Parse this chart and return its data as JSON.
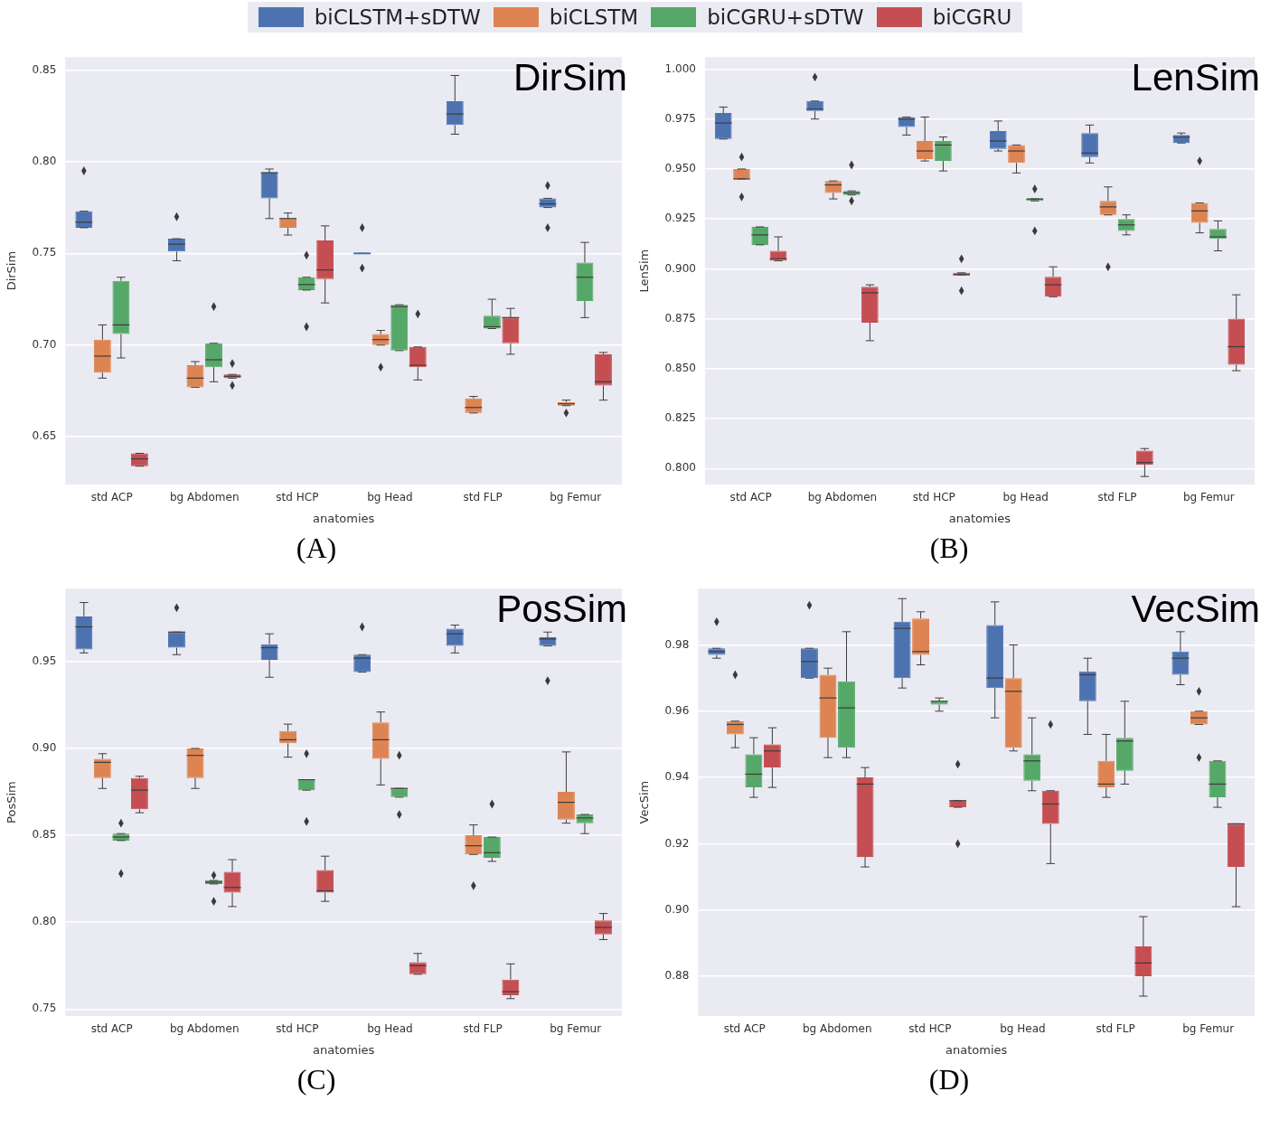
{
  "chart_data": [
    {
      "type": "box",
      "title": "DirSim",
      "xlabel": "anatomies",
      "ylabel": "DirSim",
      "annotations": [
        "(A)"
      ],
      "categories": [
        "std ACP",
        "bg Abdomen",
        "std HCP",
        "bg Head",
        "std FLP",
        "bg Femur"
      ],
      "ylim": [
        0.624,
        0.857
      ],
      "yticks": [
        0.65,
        {
          "value": 0.7,
          "label": "0.70"
        },
        0.75,
        {
          "value": 0.8,
          "label": "0.80"
        },
        0.85
      ],
      "grid": "y",
      "legend": "top",
      "marker": "diamond",
      "series": [
        {
          "name": "biCLSTM+sDTW",
          "color": "#4c72b0",
          "boxes": [
            {
              "low": 0.764,
              "q1": 0.764,
              "median": 0.767,
              "q3": 0.773,
              "high": 0.773,
              "outliers": [
                0.795
              ]
            },
            {
              "low": 0.746,
              "q1": 0.751,
              "median": 0.755,
              "q3": 0.758,
              "high": 0.758,
              "outliers": [
                0.77
              ]
            },
            {
              "low": 0.769,
              "q1": 0.78,
              "median": 0.794,
              "q3": 0.794,
              "high": 0.796
            },
            {
              "low": 0.75,
              "q1": 0.75,
              "median": 0.75,
              "q3": 0.75,
              "high": 0.75,
              "outliers": [
                0.764,
                0.742
              ]
            },
            {
              "low": 0.815,
              "q1": 0.82,
              "median": 0.826,
              "q3": 0.833,
              "high": 0.847
            },
            {
              "low": 0.775,
              "q1": 0.775,
              "median": 0.777,
              "q3": 0.78,
              "high": 0.78,
              "outliers": [
                0.787,
                0.764
              ]
            }
          ]
        },
        {
          "name": "biCLSTM",
          "color": "#dd8452",
          "boxes": [
            {
              "low": 0.682,
              "q1": 0.685,
              "median": 0.694,
              "q3": 0.703,
              "high": 0.711
            },
            {
              "low": 0.677,
              "q1": 0.677,
              "median": 0.682,
              "q3": 0.689,
              "high": 0.691
            },
            {
              "low": 0.76,
              "q1": 0.764,
              "median": 0.769,
              "q3": 0.769,
              "high": 0.772
            },
            {
              "low": 0.7,
              "q1": 0.7,
              "median": 0.703,
              "q3": 0.706,
              "high": 0.708,
              "outliers": [
                0.688
              ]
            },
            {
              "low": 0.663,
              "q1": 0.663,
              "median": 0.666,
              "q3": 0.671,
              "high": 0.672
            },
            {
              "low": 0.667,
              "q1": 0.667,
              "median": 0.668,
              "q3": 0.669,
              "high": 0.67,
              "outliers": [
                0.663
              ]
            }
          ]
        },
        {
          "name": "biCGRU+sDTW",
          "color": "#55a868",
          "boxes": [
            {
              "low": 0.693,
              "q1": 0.706,
              "median": 0.711,
              "q3": 0.735,
              "high": 0.737
            },
            {
              "low": 0.68,
              "q1": 0.688,
              "median": 0.692,
              "q3": 0.701,
              "high": 0.701,
              "outliers": [
                0.721
              ]
            },
            {
              "low": 0.73,
              "q1": 0.73,
              "median": 0.733,
              "q3": 0.737,
              "high": 0.737,
              "outliers": [
                0.749,
                0.71
              ]
            },
            {
              "low": 0.697,
              "q1": 0.697,
              "median": 0.721,
              "q3": 0.722,
              "high": 0.722
            },
            {
              "low": 0.709,
              "q1": 0.709,
              "median": 0.71,
              "q3": 0.716,
              "high": 0.725
            },
            {
              "low": 0.715,
              "q1": 0.724,
              "median": 0.737,
              "q3": 0.745,
              "high": 0.756
            }
          ]
        },
        {
          "name": "biCGRU",
          "color": "#c44e52",
          "boxes": [
            {
              "low": 0.634,
              "q1": 0.634,
              "median": 0.638,
              "q3": 0.641,
              "high": 0.641
            },
            {
              "low": 0.682,
              "q1": 0.682,
              "median": 0.683,
              "q3": 0.684,
              "high": 0.684,
              "outliers": [
                0.69,
                0.678
              ]
            },
            {
              "low": 0.723,
              "q1": 0.736,
              "median": 0.741,
              "q3": 0.757,
              "high": 0.765
            },
            {
              "low": 0.681,
              "q1": 0.688,
              "median": 0.689,
              "q3": 0.699,
              "high": 0.699,
              "outliers": [
                0.717
              ]
            },
            {
              "low": 0.695,
              "q1": 0.701,
              "median": 0.715,
              "q3": 0.715,
              "high": 0.72
            },
            {
              "low": 0.67,
              "q1": 0.678,
              "median": 0.68,
              "q3": 0.695,
              "high": 0.696
            }
          ]
        }
      ]
    },
    {
      "type": "box",
      "title": "LenSim",
      "xlabel": "anatomies",
      "ylabel": "LenSim",
      "annotations": [
        "(B)"
      ],
      "categories": [
        "std ACP",
        "bg Abdomen",
        "std HCP",
        "bg Head",
        "std FLP",
        "bg Femur"
      ],
      "ylim": [
        0.792,
        1.006
      ],
      "yticks": [
        {
          "value": 0.8,
          "label": "0.800"
        },
        0.825,
        {
          "value": 0.85,
          "label": "0.850"
        },
        0.875,
        {
          "value": 0.9,
          "label": "0.900"
        },
        0.925,
        {
          "value": 0.95,
          "label": "0.950"
        },
        0.975,
        {
          "value": 1,
          "label": "1.000"
        }
      ],
      "grid": "y",
      "marker": "diamond",
      "series": [
        {
          "color": "#4c72b0",
          "boxes": [
            {
              "low": 0.965,
              "q1": 0.965,
              "median": 0.973,
              "q3": 0.978,
              "high": 0.981
            },
            {
              "low": 0.975,
              "q1": 0.979,
              "median": 0.98,
              "q3": 0.984,
              "high": 0.984,
              "outliers": [
                0.996
              ]
            },
            {
              "low": 0.967,
              "q1": 0.971,
              "median": 0.975,
              "q3": 0.976,
              "high": 0.976
            },
            {
              "low": 0.959,
              "q1": 0.96,
              "median": 0.964,
              "q3": 0.969,
              "high": 0.974
            },
            {
              "low": 0.953,
              "q1": 0.956,
              "median": 0.958,
              "q3": 0.968,
              "high": 0.972
            },
            {
              "low": 0.963,
              "q1": 0.963,
              "median": 0.966,
              "q3": 0.967,
              "high": 0.968
            }
          ]
        },
        {
          "color": "#dd8452",
          "boxes": [
            {
              "low": 0.945,
              "q1": 0.945,
              "median": 0.945,
              "q3": 0.95,
              "high": 0.95,
              "outliers": [
                0.956,
                0.936
              ]
            },
            {
              "low": 0.935,
              "q1": 0.938,
              "median": 0.942,
              "q3": 0.944,
              "high": 0.944
            },
            {
              "low": 0.954,
              "q1": 0.955,
              "median": 0.959,
              "q3": 0.964,
              "high": 0.976
            },
            {
              "low": 0.948,
              "q1": 0.953,
              "median": 0.959,
              "q3": 0.962,
              "high": 0.962
            },
            {
              "low": 0.927,
              "q1": 0.927,
              "median": 0.931,
              "q3": 0.934,
              "high": 0.941,
              "outliers": [
                0.901
              ]
            },
            {
              "low": 0.918,
              "q1": 0.923,
              "median": 0.929,
              "q3": 0.933,
              "high": 0.933,
              "outliers": [
                0.954
              ]
            }
          ]
        },
        {
          "color": "#55a868",
          "boxes": [
            {
              "low": 0.912,
              "q1": 0.912,
              "median": 0.917,
              "q3": 0.921,
              "high": 0.921
            },
            {
              "low": 0.937,
              "q1": 0.937,
              "median": 0.938,
              "q3": 0.939,
              "high": 0.939,
              "outliers": [
                0.952,
                0.934
              ]
            },
            {
              "low": 0.949,
              "q1": 0.954,
              "median": 0.962,
              "q3": 0.964,
              "high": 0.966
            },
            {
              "low": 0.934,
              "q1": 0.934,
              "median": 0.935,
              "q3": 0.935,
              "high": 0.935,
              "outliers": [
                0.94,
                0.919
              ]
            },
            {
              "low": 0.917,
              "q1": 0.919,
              "median": 0.922,
              "q3": 0.925,
              "high": 0.927
            },
            {
              "low": 0.909,
              "q1": 0.915,
              "median": 0.916,
              "q3": 0.92,
              "high": 0.924
            }
          ]
        },
        {
          "color": "#c44e52",
          "boxes": [
            {
              "low": 0.904,
              "q1": 0.904,
              "median": 0.905,
              "q3": 0.909,
              "high": 0.916
            },
            {
              "low": 0.864,
              "q1": 0.873,
              "median": 0.888,
              "q3": 0.891,
              "high": 0.892
            },
            {
              "low": 0.897,
              "q1": 0.897,
              "median": 0.897,
              "q3": 0.898,
              "high": 0.898,
              "outliers": [
                0.905,
                0.889
              ]
            },
            {
              "low": 0.886,
              "q1": 0.886,
              "median": 0.892,
              "q3": 0.896,
              "high": 0.901
            },
            {
              "low": 0.796,
              "q1": 0.802,
              "median": 0.803,
              "q3": 0.809,
              "high": 0.81
            },
            {
              "low": 0.849,
              "q1": 0.852,
              "median": 0.861,
              "q3": 0.875,
              "high": 0.887
            }
          ]
        }
      ]
    },
    {
      "type": "box",
      "title": "PosSim",
      "xlabel": "anatomies",
      "ylabel": "PosSim",
      "annotations": [
        "(C)"
      ],
      "categories": [
        "std ACP",
        "bg Abdomen",
        "std HCP",
        "bg Head",
        "std FLP",
        "bg Femur"
      ],
      "ylim": [
        0.746,
        0.992
      ],
      "yticks": [
        0.75,
        {
          "value": 0.8,
          "label": "0.80"
        },
        0.85,
        {
          "value": 0.9,
          "label": "0.90"
        },
        0.95
      ],
      "grid": "y",
      "marker": "diamond",
      "series": [
        {
          "color": "#4c72b0",
          "boxes": [
            {
              "low": 0.955,
              "q1": 0.957,
              "median": 0.97,
              "q3": 0.976,
              "high": 0.984
            },
            {
              "low": 0.954,
              "q1": 0.958,
              "median": 0.967,
              "q3": 0.967,
              "high": 0.967,
              "outliers": [
                0.981
              ]
            },
            {
              "low": 0.941,
              "q1": 0.951,
              "median": 0.958,
              "q3": 0.96,
              "high": 0.966
            },
            {
              "low": 0.944,
              "q1": 0.944,
              "median": 0.952,
              "q3": 0.954,
              "high": 0.954,
              "outliers": [
                0.97
              ]
            },
            {
              "low": 0.955,
              "q1": 0.959,
              "median": 0.966,
              "q3": 0.969,
              "high": 0.971
            },
            {
              "low": 0.959,
              "q1": 0.959,
              "median": 0.963,
              "q3": 0.964,
              "high": 0.967,
              "outliers": [
                0.939
              ]
            }
          ]
        },
        {
          "color": "#dd8452",
          "boxes": [
            {
              "low": 0.877,
              "q1": 0.883,
              "median": 0.892,
              "q3": 0.894,
              "high": 0.897
            },
            {
              "low": 0.877,
              "q1": 0.883,
              "median": 0.896,
              "q3": 0.9,
              "high": 0.9
            },
            {
              "low": 0.895,
              "q1": 0.903,
              "median": 0.905,
              "q3": 0.91,
              "high": 0.914
            },
            {
              "low": 0.879,
              "q1": 0.894,
              "median": 0.905,
              "q3": 0.915,
              "high": 0.921
            },
            {
              "low": 0.839,
              "q1": 0.839,
              "median": 0.844,
              "q3": 0.85,
              "high": 0.856,
              "outliers": [
                0.821
              ]
            },
            {
              "low": 0.857,
              "q1": 0.859,
              "median": 0.869,
              "q3": 0.875,
              "high": 0.898
            }
          ]
        },
        {
          "color": "#55a868",
          "boxes": [
            {
              "low": 0.847,
              "q1": 0.847,
              "median": 0.849,
              "q3": 0.851,
              "high": 0.851,
              "outliers": [
                0.857,
                0.828
              ]
            },
            {
              "low": 0.822,
              "q1": 0.822,
              "median": 0.823,
              "q3": 0.824,
              "high": 0.824,
              "outliers": [
                0.827,
                0.812
              ]
            },
            {
              "low": 0.876,
              "q1": 0.876,
              "median": 0.882,
              "q3": 0.882,
              "high": 0.882,
              "outliers": [
                0.897,
                0.858
              ]
            },
            {
              "low": 0.872,
              "q1": 0.872,
              "median": 0.877,
              "q3": 0.877,
              "high": 0.877,
              "outliers": [
                0.896,
                0.862
              ]
            },
            {
              "low": 0.835,
              "q1": 0.837,
              "median": 0.84,
              "q3": 0.849,
              "high": 0.849,
              "outliers": [
                0.868
              ]
            },
            {
              "low": 0.851,
              "q1": 0.857,
              "median": 0.86,
              "q3": 0.862,
              "high": 0.862
            }
          ]
        },
        {
          "color": "#c44e52",
          "boxes": [
            {
              "low": 0.863,
              "q1": 0.865,
              "median": 0.876,
              "q3": 0.883,
              "high": 0.884
            },
            {
              "low": 0.809,
              "q1": 0.817,
              "median": 0.82,
              "q3": 0.829,
              "high": 0.836
            },
            {
              "low": 0.812,
              "q1": 0.817,
              "median": 0.818,
              "q3": 0.83,
              "high": 0.838
            },
            {
              "low": 0.77,
              "q1": 0.77,
              "median": 0.775,
              "q3": 0.777,
              "high": 0.782
            },
            {
              "low": 0.756,
              "q1": 0.758,
              "median": 0.76,
              "q3": 0.767,
              "high": 0.776
            },
            {
              "low": 0.79,
              "q1": 0.793,
              "median": 0.797,
              "q3": 0.801,
              "high": 0.805
            }
          ]
        }
      ]
    },
    {
      "type": "box",
      "title": "VecSim",
      "xlabel": "anatomies",
      "ylabel": "VecSim",
      "annotations": [
        "(D)"
      ],
      "categories": [
        "std ACP",
        "bg Abdomen",
        "std HCP",
        "bg Head",
        "std FLP",
        "bg Femur"
      ],
      "ylim": [
        0.868,
        0.997
      ],
      "yticks": [
        0.88,
        {
          "value": 0.9,
          "label": "0.90"
        },
        0.92,
        0.94,
        0.96,
        0.98
      ],
      "grid": "y",
      "marker": "diamond",
      "series": [
        {
          "color": "#4c72b0",
          "boxes": [
            {
              "low": 0.976,
              "q1": 0.977,
              "median": 0.978,
              "q3": 0.979,
              "high": 0.979,
              "outliers": [
                0.987
              ]
            },
            {
              "low": 0.97,
              "q1": 0.97,
              "median": 0.975,
              "q3": 0.979,
              "high": 0.979,
              "outliers": [
                0.992
              ]
            },
            {
              "low": 0.967,
              "q1": 0.97,
              "median": 0.985,
              "q3": 0.987,
              "high": 0.994
            },
            {
              "low": 0.958,
              "q1": 0.967,
              "median": 0.97,
              "q3": 0.986,
              "high": 0.993
            },
            {
              "low": 0.953,
              "q1": 0.963,
              "median": 0.971,
              "q3": 0.972,
              "high": 0.976
            },
            {
              "low": 0.968,
              "q1": 0.971,
              "median": 0.976,
              "q3": 0.978,
              "high": 0.984
            }
          ]
        },
        {
          "color": "#dd8452",
          "boxes": [
            {
              "low": 0.949,
              "q1": 0.953,
              "median": 0.956,
              "q3": 0.957,
              "high": 0.957,
              "outliers": [
                0.971
              ]
            },
            {
              "low": 0.946,
              "q1": 0.952,
              "median": 0.964,
              "q3": 0.971,
              "high": 0.973
            },
            {
              "low": 0.974,
              "q1": 0.977,
              "median": 0.978,
              "q3": 0.988,
              "high": 0.99
            },
            {
              "low": 0.948,
              "q1": 0.949,
              "median": 0.966,
              "q3": 0.97,
              "high": 0.98
            },
            {
              "low": 0.934,
              "q1": 0.937,
              "median": 0.938,
              "q3": 0.945,
              "high": 0.953
            },
            {
              "low": 0.956,
              "q1": 0.956,
              "median": 0.958,
              "q3": 0.96,
              "high": 0.96,
              "outliers": [
                0.966,
                0.946
              ]
            }
          ]
        },
        {
          "color": "#55a868",
          "boxes": [
            {
              "low": 0.934,
              "q1": 0.937,
              "median": 0.941,
              "q3": 0.947,
              "high": 0.952
            },
            {
              "low": 0.946,
              "q1": 0.949,
              "median": 0.961,
              "q3": 0.969,
              "high": 0.984
            },
            {
              "low": 0.96,
              "q1": 0.962,
              "median": 0.963,
              "q3": 0.963,
              "high": 0.964
            },
            {
              "low": 0.936,
              "q1": 0.939,
              "median": 0.945,
              "q3": 0.947,
              "high": 0.958
            },
            {
              "low": 0.938,
              "q1": 0.942,
              "median": 0.951,
              "q3": 0.952,
              "high": 0.963
            },
            {
              "low": 0.931,
              "q1": 0.934,
              "median": 0.938,
              "q3": 0.945,
              "high": 0.945
            }
          ]
        },
        {
          "color": "#c44e52",
          "boxes": [
            {
              "low": 0.937,
              "q1": 0.943,
              "median": 0.948,
              "q3": 0.95,
              "high": 0.955
            },
            {
              "low": 0.913,
              "q1": 0.916,
              "median": 0.938,
              "q3": 0.94,
              "high": 0.943
            },
            {
              "low": 0.931,
              "q1": 0.931,
              "median": 0.933,
              "q3": 0.933,
              "high": 0.933,
              "outliers": [
                0.944,
                0.92
              ]
            },
            {
              "low": 0.914,
              "q1": 0.926,
              "median": 0.932,
              "q3": 0.936,
              "high": 0.936,
              "outliers": [
                0.956
              ]
            },
            {
              "low": 0.874,
              "q1": 0.88,
              "median": 0.884,
              "q3": 0.889,
              "high": 0.898
            },
            {
              "low": 0.901,
              "q1": 0.913,
              "median": 0.926,
              "q3": 0.926,
              "high": 0.926
            }
          ]
        }
      ]
    }
  ]
}
